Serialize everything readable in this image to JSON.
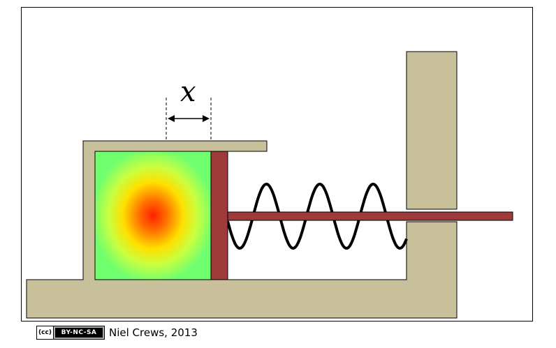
{
  "diagram": {
    "displacement_label": "x",
    "colors": {
      "frame": "#c8bf9b",
      "piston": "#9e3a3a",
      "block_hot": "#ff2000",
      "block_warm": "#ffe000",
      "block_cool": "#6fff6f",
      "spring": "#000000"
    }
  },
  "footer": {
    "license_symbol": "(cc)",
    "license_badge": "BY-NC-SA",
    "credit": "Niel Crews, 2013"
  }
}
